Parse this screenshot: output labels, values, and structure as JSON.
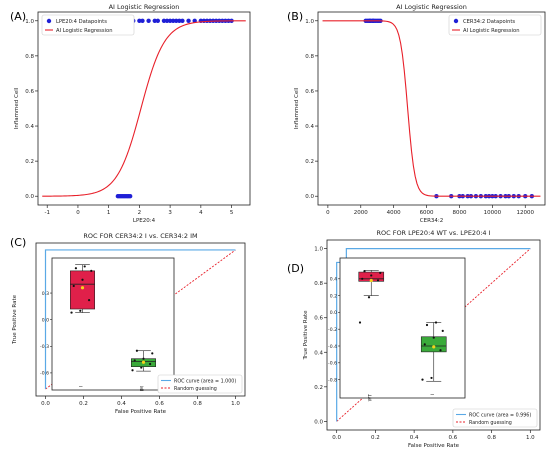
{
  "chart_data": [
    {
      "panel_label": "(A)",
      "type": "line",
      "title": "AI Logistic Regression",
      "xlabel": "LPE20:4",
      "ylabel": "Inflammed Cell",
      "xlim": [
        -1.3,
        5.6
      ],
      "ylim": [
        -0.05,
        1.05
      ],
      "xticks": [
        "-1",
        "0",
        "1",
        "2",
        "3",
        "4",
        "5"
      ],
      "yticks": [
        "0.0",
        "0.2",
        "0.4",
        "0.6",
        "0.8",
        "1.0"
      ],
      "legend_position": "top-left",
      "legend": [
        "LPE20:4 Datapoints",
        "AI Logistic Regression"
      ],
      "colors": {
        "points": "#1f1fd6",
        "curve": "#e8202a"
      },
      "series": [
        {
          "name": "LPE20:4 Datapoints",
          "x0": [
            1.3,
            1.35,
            1.4,
            1.45,
            1.5,
            1.55,
            1.6,
            1.65,
            1.7
          ],
          "x1": [
            1.6,
            1.7,
            1.8,
            2.0,
            2.1,
            2.3,
            2.5,
            2.6,
            2.8,
            2.9,
            3.0,
            3.1,
            3.2,
            3.3,
            3.4,
            3.6,
            3.8,
            4.0,
            4.1,
            4.2,
            4.3,
            4.4,
            4.5,
            4.6,
            4.7,
            4.8,
            4.9,
            5.0
          ]
        },
        {
          "name": "AI Logistic Regression",
          "model": {
            "midpoint": 2.05,
            "slope": 2.6
          }
        }
      ]
    },
    {
      "panel_label": "(B)",
      "type": "line",
      "title": "AI Logistic Regression",
      "xlabel": "CER34:2",
      "ylabel": "Inflammed Cell",
      "xlim": [
        -600,
        13200
      ],
      "ylim": [
        -0.05,
        1.05
      ],
      "xticks": [
        "0",
        "2000",
        "4000",
        "6000",
        "8000",
        "10000",
        "12000"
      ],
      "yticks": [
        "0.0",
        "0.2",
        "0.4",
        "0.6",
        "0.8",
        "1.0"
      ],
      "legend_position": "top-right",
      "legend": [
        "CER34:2 Datapoints",
        "AI Logistic Regression"
      ],
      "colors": {
        "points": "#1f1fd6",
        "curve": "#e8202a"
      },
      "series": [
        {
          "name": "CER34:2 Datapoints",
          "x1": [
            2300,
            2400,
            2500,
            2550,
            2600,
            2700,
            2750,
            2800,
            2900,
            3000,
            3100,
            3200
          ],
          "x0": [
            6600,
            7500,
            8000,
            8200,
            8500,
            8700,
            9000,
            9300,
            9600,
            9800,
            10000,
            10200,
            10500,
            10800,
            11000,
            11300,
            11600,
            12000,
            12400
          ]
        },
        {
          "name": "AI Logistic Regression",
          "model": {
            "midpoint": 4850,
            "slope": -0.0045
          }
        }
      ]
    },
    {
      "panel_label": "(C)",
      "type": "line",
      "title": "ROC FOR CER34:2 I vs. CER34:2 IM",
      "xlabel": "False Positive Rate",
      "ylabel": "True Positive Rate",
      "xlim": [
        -0.05,
        1.05
      ],
      "ylim": [
        -0.05,
        1.05
      ],
      "xticks": [
        "0.0",
        "0.2",
        "0.4",
        "0.6",
        "0.8",
        "1.0"
      ],
      "yticks": [],
      "legend_position": "bottom-right",
      "legend": [
        "ROC curve (area = 1.000)",
        "Random guessing"
      ],
      "colors": {
        "roc": "#5aa9e6",
        "random": "#e8202a"
      },
      "series": [
        {
          "name": "ROC curve (area = 1.000)",
          "points": [
            [
              0,
              0
            ],
            [
              0,
              1
            ],
            [
              1,
              1
            ]
          ]
        },
        {
          "name": "Random guessing",
          "points": [
            [
              0,
              0
            ],
            [
              1,
              1
            ]
          ]
        }
      ],
      "inset": {
        "type": "box",
        "categories": [
          "I",
          "IM"
        ],
        "yticks": [
          "0.3",
          "0.0",
          "-0.3",
          "-0.6"
        ],
        "ylim": [
          -0.68,
          0.65
        ],
        "colors": [
          "#e0204a",
          "#3aaa3a"
        ],
        "boxes": [
          {
            "q1": 0.12,
            "median": 0.4,
            "q3": 0.55,
            "whisker_low": 0.08,
            "whisker_high": 0.62,
            "mean": 0.36,
            "points": [
              0.08,
              0.1,
              0.22,
              0.38,
              0.45,
              0.55,
              0.58,
              0.6
            ]
          },
          {
            "q1": -0.53,
            "median": -0.47,
            "q3": -0.44,
            "whisker_low": -0.58,
            "whisker_high": -0.35,
            "mean": -0.48,
            "points": [
              -0.57,
              -0.54,
              -0.5,
              -0.46,
              -0.44,
              -0.38,
              -0.35
            ]
          }
        ]
      }
    },
    {
      "panel_label": "(D)",
      "type": "line",
      "title": "ROC FOR LPE20:4 WT vs. LPE20:4 I",
      "xlabel": "False Positive Rate",
      "ylabel": "True Positive Rate",
      "xlim": [
        -0.05,
        1.05
      ],
      "ylim": [
        -0.05,
        1.05
      ],
      "xticks": [
        "0.0",
        "0.2",
        "0.4",
        "0.6",
        "0.8",
        "1.0"
      ],
      "yticks": [
        "0.0",
        "0.2",
        "0.4",
        "0.6",
        "0.8",
        "1.0"
      ],
      "legend_position": "bottom-right",
      "legend": [
        "ROC curve (area = 0.996)",
        "Random guessing"
      ],
      "colors": {
        "roc": "#5aa9e6",
        "random": "#e8202a"
      },
      "series": [
        {
          "name": "ROC curve (area = 0.996)",
          "points": [
            [
              0,
              0
            ],
            [
              0,
              0.92
            ],
            [
              0.05,
              0.92
            ],
            [
              0.05,
              1
            ],
            [
              1,
              1
            ]
          ]
        },
        {
          "name": "Random guessing",
          "points": [
            [
              0,
              0
            ],
            [
              1,
              1
            ]
          ]
        }
      ],
      "inset": {
        "type": "box",
        "categories": [
          "WT",
          "I"
        ],
        "yticks": [
          "0.4",
          "0.2",
          "0.0",
          "-0.2",
          "-0.4",
          "-0.6",
          "-0.8"
        ],
        "ylim": [
          -0.9,
          0.6
        ],
        "colors": [
          "#e0204a",
          "#3aaa3a"
        ],
        "boxes": [
          {
            "q1": 0.37,
            "median": 0.4,
            "q3": 0.48,
            "whisker_low": 0.2,
            "whisker_high": 0.5,
            "mean": 0.38,
            "points": [
              -0.12,
              0.18,
              0.38,
              0.4,
              0.44,
              0.47,
              0.49
            ]
          },
          {
            "q1": -0.47,
            "median": -0.4,
            "q3": -0.29,
            "whisker_low": -0.82,
            "whisker_high": -0.12,
            "mean": -0.41,
            "points": [
              -0.8,
              -0.78,
              -0.45,
              -0.38,
              -0.3,
              -0.22,
              -0.15,
              -0.12
            ]
          }
        ]
      }
    }
  ]
}
